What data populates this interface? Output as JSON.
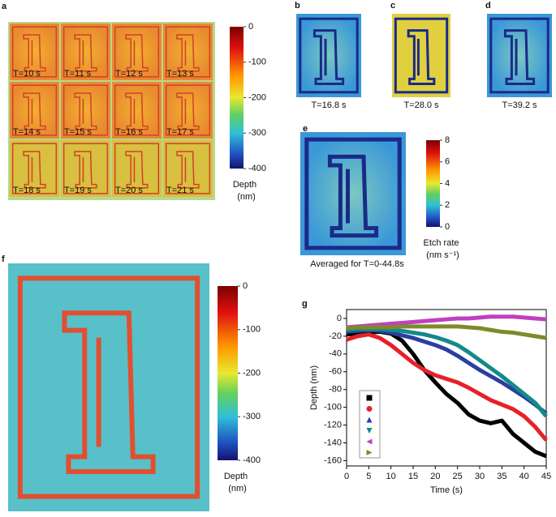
{
  "panel_a": {
    "label": "a",
    "frames": [
      "T=10 s",
      "T=11 s",
      "T=12 s",
      "T=13 s",
      "T=14 s",
      "T=15 s",
      "T=16 s",
      "T=17 s",
      "T=18 s",
      "T=19 s",
      "T=20 s",
      "T=21 s"
    ],
    "colorbar": {
      "lim": [
        0,
        -400
      ],
      "ticks": [
        0,
        -100,
        -200,
        -300,
        -400
      ],
      "label": "Depth",
      "unit": "(nm)"
    }
  },
  "panels_bcd": [
    {
      "label": "b",
      "caption": "T=16.8 s"
    },
    {
      "label": "c",
      "caption": "T=28.0 s"
    },
    {
      "label": "d",
      "caption": "T=39.2 s"
    }
  ],
  "panel_e": {
    "label": "e",
    "caption": "Averaged for T=0-44.8s",
    "colorbar": {
      "lim": [
        8,
        0
      ],
      "ticks": [
        8,
        6,
        4,
        2,
        0
      ],
      "label": "Etch rate",
      "unit": "(nm s⁻¹)"
    }
  },
  "panel_f": {
    "label": "f",
    "colorbar": {
      "lim": [
        0,
        -400
      ],
      "ticks": [
        0,
        -100,
        -200,
        -300,
        -400
      ],
      "label": "Depth",
      "unit": "(nm)"
    }
  },
  "chart_data": {
    "type": "line",
    "label": "g",
    "xlabel": "Time (s)",
    "ylabel": "Depth (nm)",
    "x": [
      0,
      2.5,
      5,
      7.5,
      10,
      12.5,
      15,
      17.5,
      20,
      22.5,
      25,
      27.5,
      30,
      32.5,
      35,
      37.5,
      40,
      42.5,
      45
    ],
    "xlim": [
      0,
      45
    ],
    "xticks": [
      0,
      5,
      10,
      15,
      20,
      25,
      30,
      35,
      40,
      45
    ],
    "ylim": [
      -166,
      10
    ],
    "yticks": [
      0,
      -20,
      -40,
      -60,
      -80,
      -100,
      -120,
      -140,
      -160
    ],
    "series": [
      {
        "color": "#000000",
        "marker": "square",
        "values": [
          -18,
          -17,
          -16,
          -15,
          -17,
          -25,
          -40,
          -58,
          -72,
          -85,
          -95,
          -108,
          -115,
          -118,
          -115,
          -130,
          -140,
          -150,
          -155
        ]
      },
      {
        "color": "#e8202a",
        "marker": "circle",
        "values": [
          -24,
          -20,
          -18,
          -22,
          -30,
          -40,
          -50,
          -58,
          -64,
          -68,
          -72,
          -78,
          -85,
          -92,
          -97,
          -102,
          -110,
          -122,
          -137
        ]
      },
      {
        "color": "#2a3fa0",
        "marker": "triangle-up",
        "values": [
          -15,
          -14,
          -13,
          -14,
          -16,
          -19,
          -22,
          -26,
          -30,
          -35,
          -42,
          -50,
          -58,
          -65,
          -72,
          -80,
          -88,
          -97,
          -107
        ]
      },
      {
        "color": "#138a8a",
        "marker": "triangle-down",
        "values": [
          -13,
          -12,
          -12,
          -12,
          -13,
          -14,
          -16,
          -18,
          -21,
          -25,
          -30,
          -38,
          -47,
          -56,
          -65,
          -75,
          -85,
          -95,
          -110
        ]
      },
      {
        "color": "#c040c0",
        "marker": "triangle-left",
        "values": [
          -10,
          -9,
          -8,
          -7,
          -6,
          -5,
          -4,
          -3,
          -2,
          -1,
          0,
          0,
          1,
          2,
          2,
          2,
          1,
          0,
          -1
        ]
      },
      {
        "color": "#7f8a2a",
        "marker": "triangle-right",
        "values": [
          -11,
          -10,
          -10,
          -10,
          -10,
          -9,
          -9,
          -9,
          -9,
          -9,
          -9,
          -10,
          -11,
          -13,
          -15,
          -16,
          -18,
          -20,
          -22
        ]
      }
    ]
  }
}
